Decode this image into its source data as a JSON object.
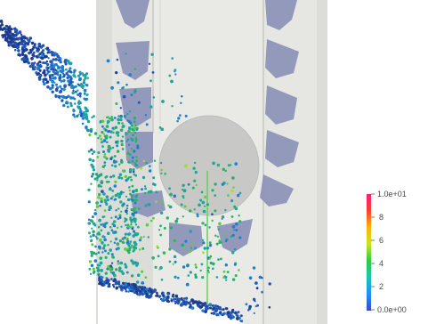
{
  "colorbar": {
    "label_max": "1.0e+01",
    "label_8": "8",
    "label_6": "6",
    "label_4": "4",
    "label_2": "2",
    "label_min": "0.0e+00",
    "range": [
      0,
      10
    ],
    "colors": [
      "#3b4cc0",
      "#1e90ff",
      "#19c6b0",
      "#2ecc40",
      "#c8e61e",
      "#ffb400",
      "#ff3c32",
      "#ff1e78"
    ]
  },
  "scene": {
    "background": "#ffffff",
    "housing_color": "#dcdcd8",
    "chute_color": "#e9e9e6",
    "panel_color": "#e6e6e2",
    "drum_color": "#c8c8c6",
    "bucket_color": "#8f95b9",
    "beam_color": "#5fd35f"
  }
}
